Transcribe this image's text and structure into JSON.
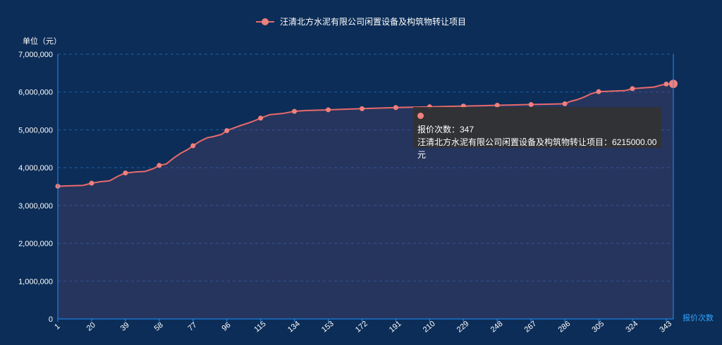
{
  "legend": {
    "series_name": "汪清北方水泥有限公司闲置设备及构筑物转让项目"
  },
  "tooltip": {
    "count_label": "报价次数：347",
    "value_label": "汪清北方水泥有限公司闲置设备及构筑物转让项目：6215000.00元"
  },
  "colors": {
    "background": "#0c2d57",
    "line": "#e86a6a",
    "marker": "#f0807d",
    "axis": "#1e90ff"
  },
  "chart_data": {
    "type": "line",
    "title": "",
    "xlabel": "报价次数",
    "ylabel": "单位（元）",
    "x_ticks": [
      "1",
      "20",
      "39",
      "58",
      "77",
      "96",
      "115",
      "134",
      "153",
      "172",
      "191",
      "210",
      "229",
      "248",
      "267",
      "286",
      "305",
      "324",
      "343"
    ],
    "y_ticks": [
      "0",
      "1,000,000",
      "2,000,000",
      "3,000,000",
      "4,000,000",
      "5,000,000",
      "6,000,000",
      "7,000,000"
    ],
    "xlim": [
      1,
      347
    ],
    "ylim": [
      0,
      7000000
    ],
    "grid": true,
    "legend_position": "top",
    "series": [
      {
        "name": "汪清北方水泥有限公司闲置设备及构筑物转让项目",
        "points": [
          [
            1,
            3510000
          ],
          [
            8,
            3520000
          ],
          [
            15,
            3530000
          ],
          [
            20,
            3590000
          ],
          [
            25,
            3630000
          ],
          [
            30,
            3650000
          ],
          [
            35,
            3780000
          ],
          [
            39,
            3860000
          ],
          [
            45,
            3890000
          ],
          [
            50,
            3900000
          ],
          [
            55,
            3980000
          ],
          [
            58,
            4060000
          ],
          [
            62,
            4100000
          ],
          [
            66,
            4250000
          ],
          [
            70,
            4380000
          ],
          [
            74,
            4480000
          ],
          [
            77,
            4580000
          ],
          [
            81,
            4700000
          ],
          [
            85,
            4790000
          ],
          [
            89,
            4830000
          ],
          [
            93,
            4880000
          ],
          [
            96,
            4980000
          ],
          [
            100,
            5050000
          ],
          [
            104,
            5120000
          ],
          [
            108,
            5180000
          ],
          [
            112,
            5250000
          ],
          [
            115,
            5310000
          ],
          [
            120,
            5400000
          ],
          [
            127,
            5430000
          ],
          [
            134,
            5490000
          ],
          [
            140,
            5510000
          ],
          [
            153,
            5530000
          ],
          [
            165,
            5550000
          ],
          [
            172,
            5560000
          ],
          [
            185,
            5580000
          ],
          [
            191,
            5590000
          ],
          [
            200,
            5600000
          ],
          [
            210,
            5610000
          ],
          [
            220,
            5620000
          ],
          [
            229,
            5630000
          ],
          [
            240,
            5640000
          ],
          [
            248,
            5650000
          ],
          [
            258,
            5660000
          ],
          [
            267,
            5670000
          ],
          [
            278,
            5680000
          ],
          [
            286,
            5690000
          ],
          [
            289,
            5750000
          ],
          [
            293,
            5800000
          ],
          [
            297,
            5870000
          ],
          [
            301,
            5960000
          ],
          [
            305,
            6010000
          ],
          [
            315,
            6030000
          ],
          [
            320,
            6040000
          ],
          [
            324,
            6090000
          ],
          [
            330,
            6110000
          ],
          [
            336,
            6130000
          ],
          [
            340,
            6180000
          ],
          [
            343,
            6210000
          ],
          [
            347,
            6215000
          ]
        ],
        "markers": [
          1,
          20,
          39,
          58,
          77,
          96,
          115,
          134,
          153,
          172,
          191,
          210,
          229,
          248,
          267,
          286,
          305,
          324,
          343,
          347
        ]
      }
    ]
  }
}
